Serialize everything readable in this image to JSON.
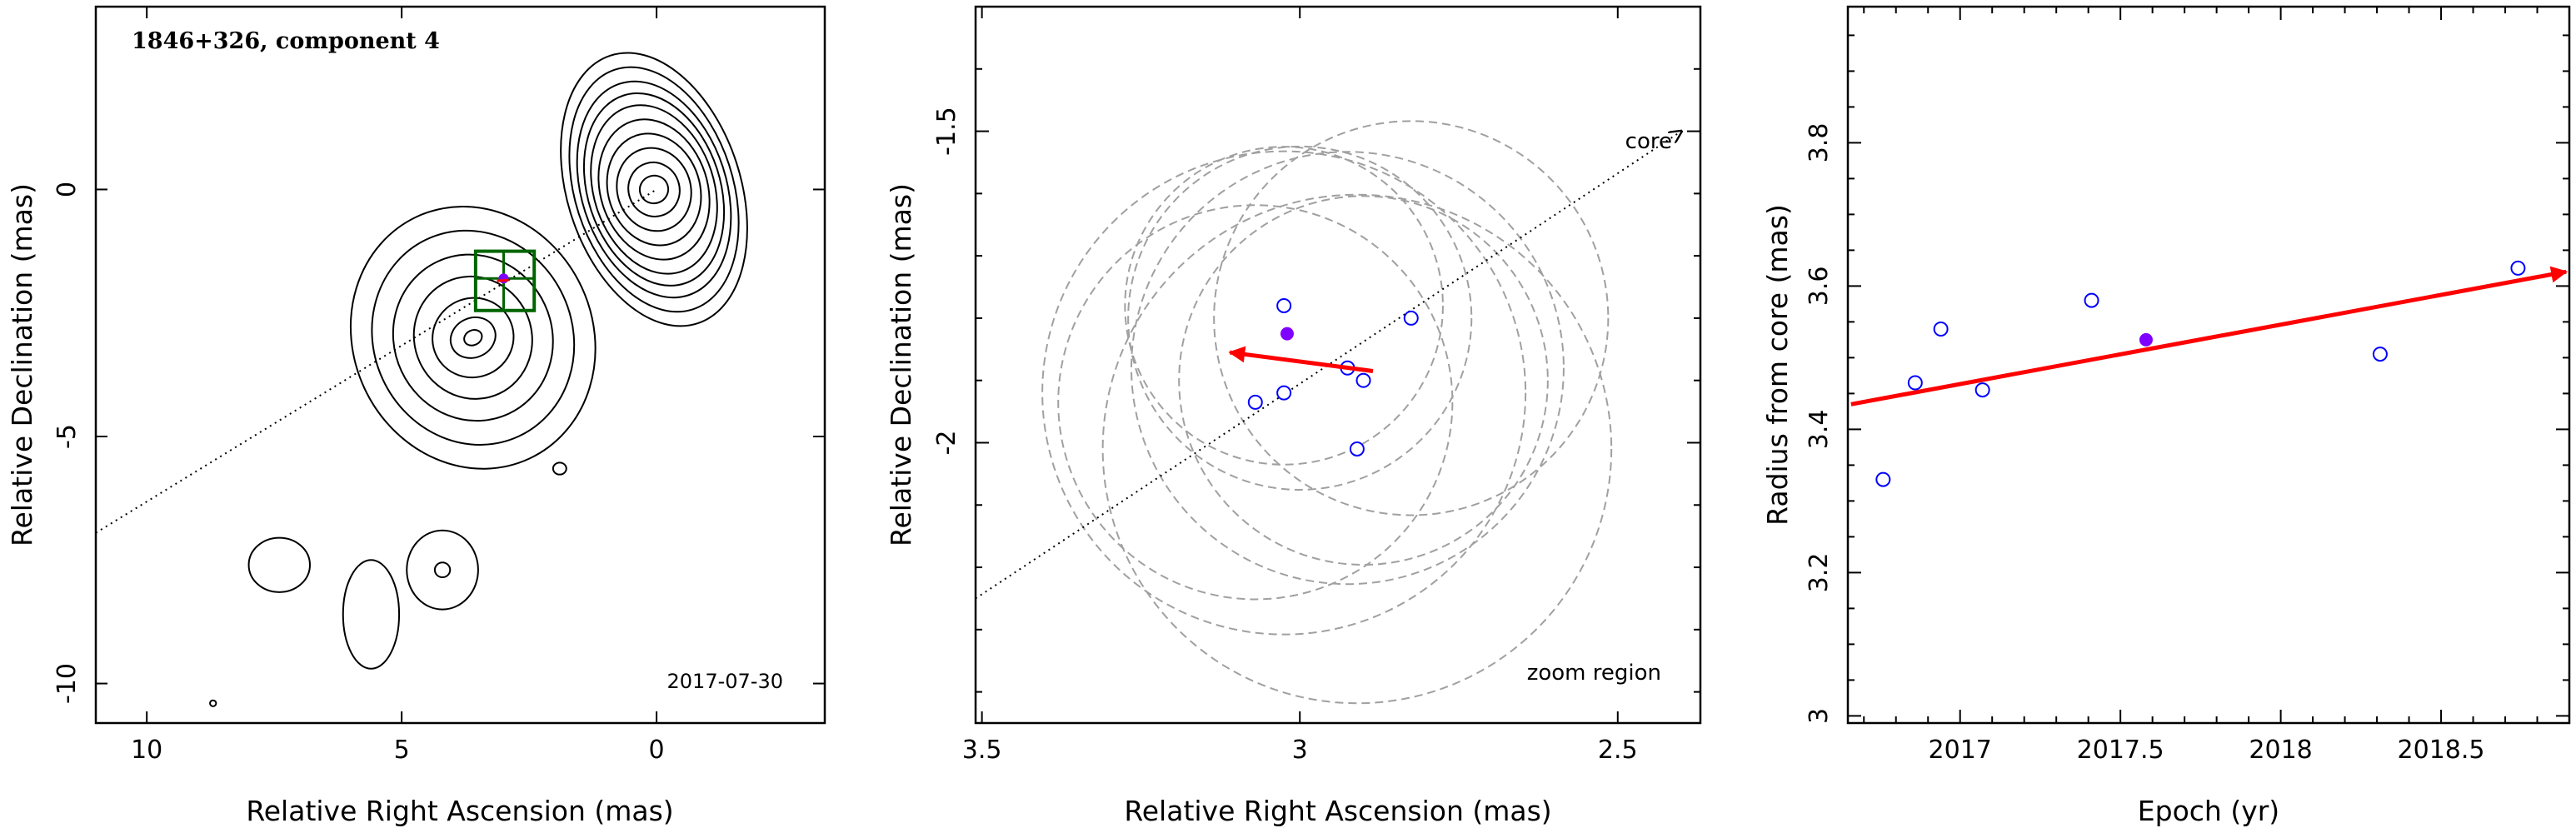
{
  "chart_data": [
    {
      "type": "scatter",
      "subtype": "contour-map",
      "title": "1846+326, component 4",
      "epoch_label": "2017-07-30",
      "xlabel": "Relative Right Ascension (mas)",
      "ylabel": "Relative Declination (mas)",
      "xlim": [
        11,
        -3.3
      ],
      "ylim": [
        -10.8,
        3.7
      ],
      "xticks": [
        10,
        5,
        0
      ],
      "yticks": [
        0,
        -5,
        -10
      ],
      "core": {
        "x": 0,
        "y": 0
      },
      "component_position": {
        "x": 3.0,
        "y": -1.8
      },
      "zoom_box": {
        "x": [
          2.4,
          3.55
        ],
        "y": [
          -1.25,
          -2.45
        ]
      },
      "feature_axis_line": {
        "from": {
          "x": 11,
          "y": -6.95
        },
        "to": {
          "x": 0,
          "y": 0
        }
      },
      "contours": [
        {
          "name": "core",
          "center": {
            "x": 0.05,
            "y": 0.0
          },
          "rx": [
            0.28,
            0.5,
            0.72,
            0.9,
            1.05,
            1.18,
            1.3,
            1.42,
            1.55,
            1.7
          ],
          "ry": [
            0.28,
            0.55,
            0.85,
            1.15,
            1.45,
            1.75,
            2.0,
            2.25,
            2.55,
            2.85
          ]
        },
        {
          "name": "jet-knot",
          "center": {
            "x": 3.6,
            "y": -3.0
          },
          "rx": [
            0.18,
            0.45,
            0.8,
            1.15,
            1.55,
            1.95,
            2.35
          ],
          "ry": [
            0.15,
            0.4,
            0.8,
            1.25,
            1.7,
            2.2,
            2.7
          ]
        },
        {
          "name": "spot-1",
          "center": {
            "x": 7.4,
            "y": -7.6
          },
          "rx": [
            0.6
          ],
          "ry": [
            0.55
          ]
        },
        {
          "name": "spot-2",
          "center": {
            "x": 5.6,
            "y": -8.6
          },
          "rx": [
            0.55
          ],
          "ry": [
            1.1
          ]
        },
        {
          "name": "spot-3",
          "center": {
            "x": 4.2,
            "y": -7.7
          },
          "rx": [
            0.15,
            0.7
          ],
          "ry": [
            0.15,
            0.8
          ]
        },
        {
          "name": "spot-4",
          "center": {
            "x": 1.9,
            "y": -5.65
          },
          "rx": [
            0.13
          ],
          "ry": [
            0.12
          ]
        },
        {
          "name": "spot-5",
          "center": {
            "x": 8.7,
            "y": -10.4
          },
          "rx": [
            0.06
          ],
          "ry": [
            0.06
          ]
        }
      ]
    },
    {
      "type": "scatter",
      "subtype": "zoom",
      "annotation_core": "core",
      "annotation_zoom": "zoom region",
      "xlabel": "Relative Right Ascension (mas)",
      "ylabel": "Relative Declination (mas)",
      "xlim": [
        3.51,
        2.37
      ],
      "ylim": [
        -2.45,
        -1.3
      ],
      "xticks": [
        3.5,
        3,
        2.5
      ],
      "ytick_labels": [
        -1.5,
        -2
      ],
      "yticks_minor": [
        -1.4,
        -1.5,
        -1.6,
        -1.7,
        -1.8,
        -1.9,
        -2.0,
        -2.1,
        -2.2,
        -2.3,
        -2.4
      ],
      "axis_line": {
        "from": {
          "x": 3.51,
          "y": -2.25
        },
        "to": {
          "x": 2.4,
          "y": -1.5
        }
      },
      "points_open": [
        {
          "x": 3.07,
          "y": -1.935
        },
        {
          "x": 3.025,
          "y": -1.92
        },
        {
          "x": 2.9,
          "y": -1.9
        },
        {
          "x": 2.925,
          "y": -1.88
        },
        {
          "x": 2.825,
          "y": -1.8
        },
        {
          "x": 3.025,
          "y": -1.78
        },
        {
          "x": 2.91,
          "y": -2.01
        }
      ],
      "point_filled": {
        "x": 3.02,
        "y": -1.825
      },
      "motion_arrow": {
        "from": {
          "x": 2.885,
          "y": -1.885
        },
        "to": {
          "x": 3.11,
          "y": -1.855
        }
      },
      "uncertainty_circles": [
        {
          "x": 3.07,
          "y": -1.935,
          "r": 0.31
        },
        {
          "x": 3.025,
          "y": -1.92,
          "r": 0.38
        },
        {
          "x": 2.9,
          "y": -1.9,
          "r": 0.29
        },
        {
          "x": 2.925,
          "y": -1.88,
          "r": 0.34
        },
        {
          "x": 2.825,
          "y": -1.8,
          "r": 0.31
        },
        {
          "x": 3.025,
          "y": -1.78,
          "r": 0.25
        },
        {
          "x": 2.91,
          "y": -2.01,
          "r": 0.4
        },
        {
          "x": 3.0,
          "y": -1.8,
          "r": 0.27
        }
      ],
      "series_colors": {
        "open": "#0000ff",
        "filled": "#8000ff",
        "arrow": "#ff0000",
        "circles": "#a0a0a0"
      }
    },
    {
      "type": "scatter",
      "xlabel": "Epoch (yr)",
      "ylabel": "Radius from core (mas)",
      "xlim": [
        16.65,
        18.9
      ],
      "ylim": [
        2.99,
        3.99
      ],
      "xticks": [
        17,
        17.5,
        18,
        18.5
      ],
      "xtick_labels": [
        "2017",
        "2017.5",
        "2018",
        "2018.5"
      ],
      "yticks": [
        3,
        3.2,
        3.4,
        3.6,
        3.8
      ],
      "yticks_minor": [
        3.05,
        3.1,
        3.15,
        3.25,
        3.3,
        3.35,
        3.45,
        3.5,
        3.55,
        3.65,
        3.7,
        3.75,
        3.85,
        3.9,
        3.95
      ],
      "points_open": [
        {
          "x": 16.76,
          "y": 3.33
        },
        {
          "x": 16.86,
          "y": 3.465
        },
        {
          "x": 16.94,
          "y": 3.54
        },
        {
          "x": 17.07,
          "y": 3.455
        },
        {
          "x": 17.41,
          "y": 3.58
        },
        {
          "x": 18.31,
          "y": 3.505
        },
        {
          "x": 18.74,
          "y": 3.625
        }
      ],
      "point_filled": {
        "x": 17.58,
        "y": 3.525
      },
      "trend_arrow": {
        "from": {
          "x": 16.66,
          "y": 3.435
        },
        "to": {
          "x": 18.89,
          "y": 3.62
        }
      }
    }
  ]
}
